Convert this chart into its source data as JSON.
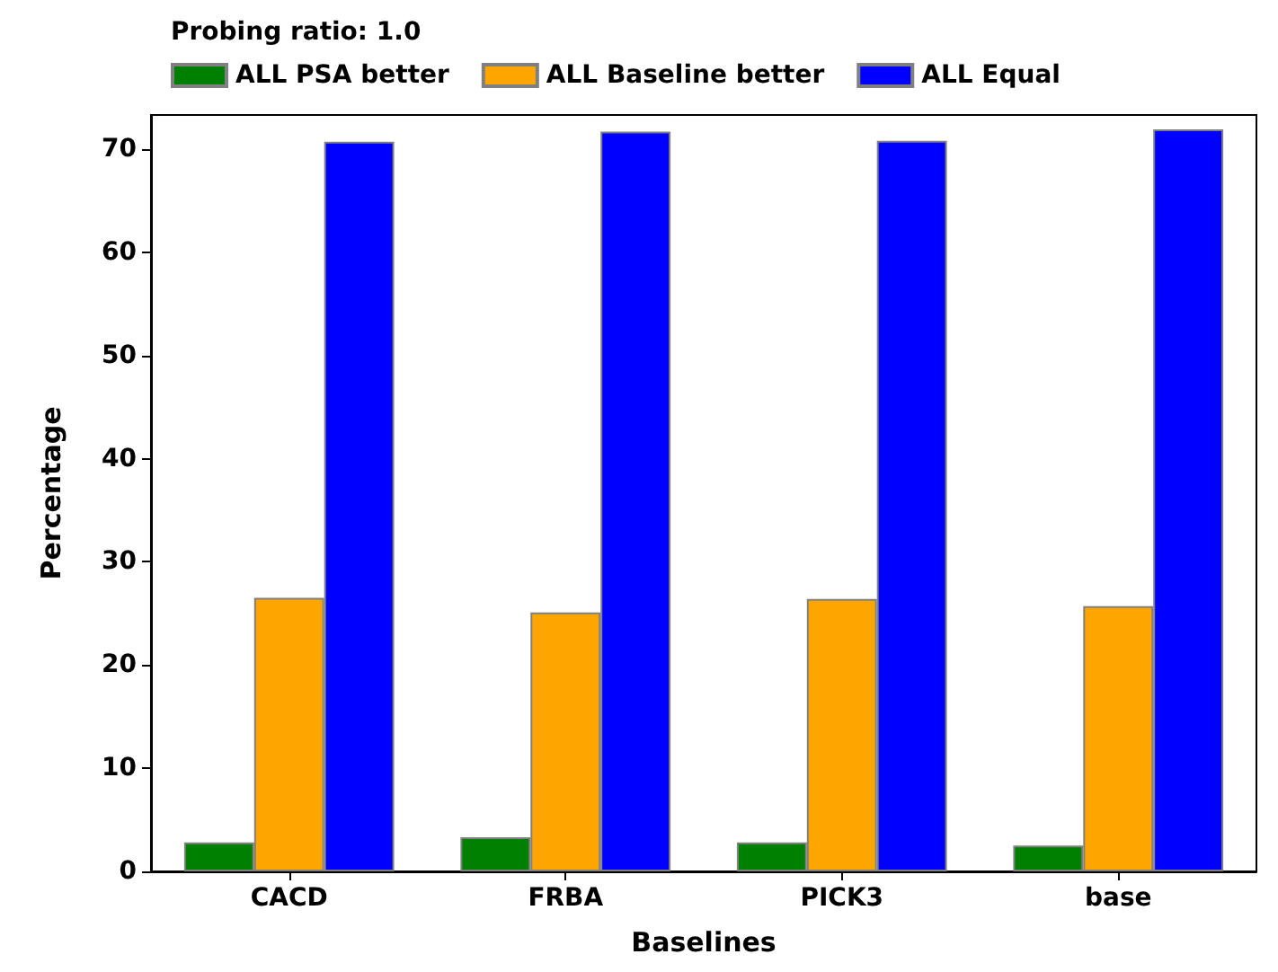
{
  "chart_data": {
    "type": "bar",
    "xlabel": "Baselines",
    "ylabel": "Percentage",
    "legend_title": "Probing ratio: 1.0",
    "categories": [
      "CACD",
      "FRBA",
      "PICK3",
      "base"
    ],
    "series": [
      {
        "name": "ALL PSA better",
        "color": "#008000",
        "values": [
          2.8,
          3.3,
          2.8,
          2.5
        ]
      },
      {
        "name": "ALL Baseline better",
        "color": "#ffa500",
        "values": [
          26.5,
          25.1,
          26.4,
          25.7
        ]
      },
      {
        "name": "ALL Equal",
        "color": "#0000ff",
        "values": [
          70.7,
          71.7,
          70.8,
          71.9
        ]
      }
    ],
    "ylim": [
      0,
      73.3
    ],
    "yticks": [
      0,
      10,
      20,
      30,
      40,
      50,
      60,
      70
    ],
    "grid": false,
    "legend": "top left"
  }
}
